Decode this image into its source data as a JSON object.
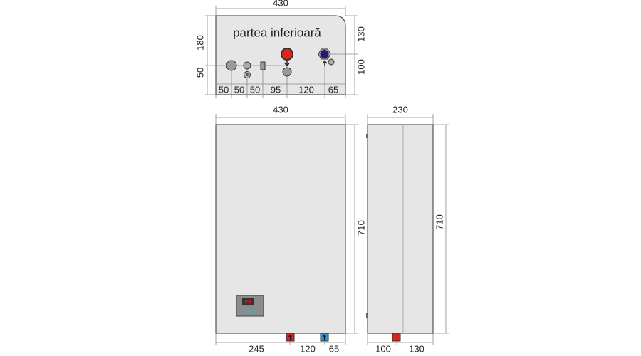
{
  "bottom_view": {
    "title": "partea inferioară",
    "width": 430,
    "height": 180,
    "left_offset": 50,
    "right_dims": [
      130,
      100
    ],
    "bottom_dims": [
      50,
      50,
      50,
      95,
      120,
      65
    ]
  },
  "front_view": {
    "width": 430,
    "height": 710,
    "display": "88",
    "bottom_dims": [
      245,
      120,
      65
    ]
  },
  "side_view": {
    "width": 230,
    "height": 710,
    "bottom_dims": [
      100,
      130
    ]
  }
}
